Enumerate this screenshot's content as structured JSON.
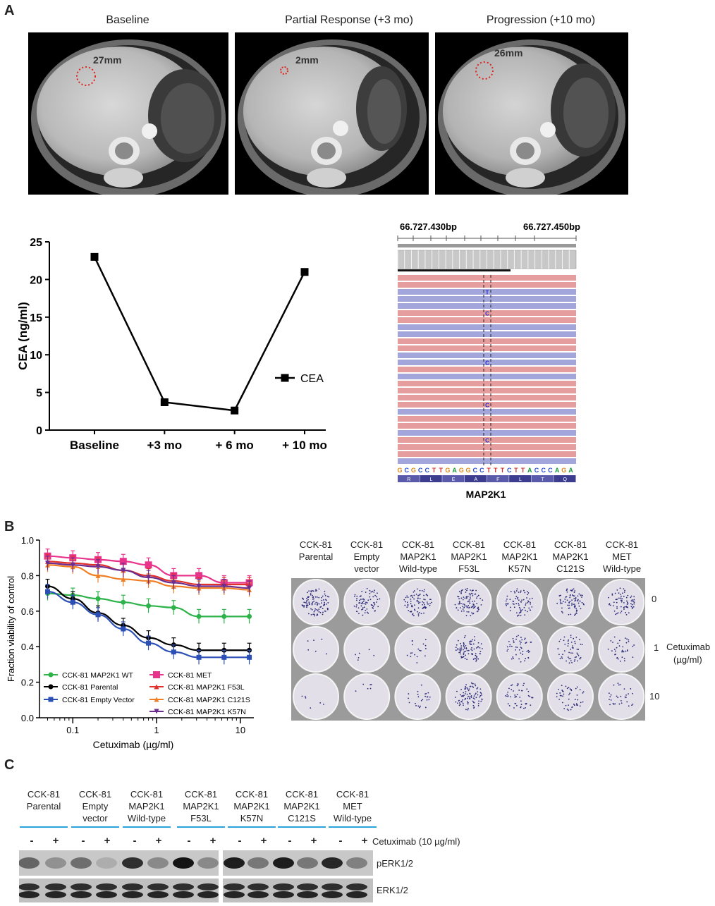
{
  "panel_a": {
    "letter": "A",
    "ct_panels": [
      {
        "title": "Baseline",
        "measure": "27mm"
      },
      {
        "title": "Partial Response (+3 mo)",
        "measure": "2mm"
      },
      {
        "title": "Progression (+10 mo)",
        "measure": "26mm"
      }
    ],
    "igv": {
      "coord_left": "66.727.430bp",
      "coord_right": "66.727.450bp",
      "sequence": "GCGCCTTGAGGCCTTTCTTACCCAGA",
      "amino_acids": [
        "R",
        "L",
        "E",
        "A",
        "F",
        "L",
        "T",
        "Q"
      ],
      "gene": "MAP2K1",
      "variant_base": "C",
      "variant_t": "T"
    }
  },
  "panel_b": {
    "letter": "B",
    "clonogenic": {
      "lines": [
        [
          "CCK-81",
          "Parental"
        ],
        [
          "CCK-81",
          "Empty",
          "vector"
        ],
        [
          "CCK-81",
          "MAP2K1",
          "Wild-type"
        ],
        [
          "CCK-81",
          "MAP2K1",
          "F53L"
        ],
        [
          "CCK-81",
          "MAP2K1",
          "K57N"
        ],
        [
          "CCK-81",
          "MAP2K1",
          "C121S"
        ],
        [
          "CCK-81",
          "MET",
          "Wild-type"
        ]
      ],
      "doses": [
        "0",
        "1",
        "10"
      ],
      "drug_label": "Cetuximab",
      "unit_label": "(µg/ml)"
    }
  },
  "panel_c": {
    "letter": "C",
    "lanes": [
      [
        "CCK-81",
        "Parental"
      ],
      [
        "CCK-81",
        "Empty",
        "vector"
      ],
      [
        "CCK-81",
        "MAP2K1",
        "Wild-type"
      ],
      [
        "CCK-81",
        "MAP2K1",
        "F53L"
      ],
      [
        "CCK-81",
        "MAP2K1",
        "K57N"
      ],
      [
        "CCK-81",
        "MAP2K1",
        "C121S"
      ],
      [
        "CCK-81",
        "MET",
        "Wild-type"
      ]
    ],
    "minus": "-",
    "plus": "+",
    "treatment_label": "Cetuximab (10 µg/ml)",
    "blots": [
      "pERK1/2",
      "ERK1/2"
    ]
  },
  "chart_data": [
    {
      "type": "line",
      "x": [
        "Baseline",
        "+3 mo",
        "+ 6 mo",
        "+ 10 mo"
      ],
      "series": [
        {
          "name": "CEA",
          "values": [
            23,
            3.7,
            2.6,
            21
          ],
          "color": "#000000"
        }
      ],
      "title": "",
      "xlabel": "",
      "ylabel": "CEA (ng/ml)",
      "ylim": [
        0,
        25
      ],
      "yticks": [
        0,
        5,
        10,
        15,
        20,
        25
      ],
      "legend": "right"
    },
    {
      "type": "scatter",
      "xscale": "log",
      "xlim": [
        0.05,
        12.8
      ],
      "xticks": [
        "0.1",
        "1",
        "10"
      ],
      "xlabel": "Cetuximab (µg/ml)",
      "ylabel": "Fraction viability of control",
      "ylim": [
        0,
        1.0
      ],
      "yticks": [
        "0.0",
        "0.2",
        "0.4",
        "0.6",
        "0.8",
        "1.0"
      ],
      "x": [
        0.05,
        0.1,
        0.2,
        0.4,
        0.8,
        1.6,
        3.2,
        6.4,
        12.8
      ],
      "legend": "bottom-left",
      "series": [
        {
          "name": "CCK-81 MAP2K1 WT",
          "color": "#2db34a",
          "marker": "circle",
          "values": [
            0.7,
            0.69,
            0.67,
            0.65,
            0.63,
            0.62,
            0.57,
            0.57,
            0.57
          ]
        },
        {
          "name": "CCK-81 Parental",
          "color": "#000000",
          "marker": "circle",
          "values": [
            0.74,
            0.67,
            0.59,
            0.52,
            0.45,
            0.41,
            0.38,
            0.38,
            0.38
          ]
        },
        {
          "name": "CCK-81 Empty Vector",
          "color": "#2b4fb5",
          "marker": "square",
          "values": [
            0.71,
            0.65,
            0.58,
            0.5,
            0.42,
            0.37,
            0.34,
            0.34,
            0.34
          ]
        },
        {
          "name": "CCK-81 MET",
          "color": "#e8338c",
          "marker": "square",
          "values": [
            0.91,
            0.9,
            0.89,
            0.88,
            0.86,
            0.8,
            0.8,
            0.76,
            0.76
          ]
        },
        {
          "name": "CCK-81 MAP2K1 F53L",
          "color": "#e0302b",
          "marker": "triangle",
          "values": [
            0.88,
            0.87,
            0.86,
            0.83,
            0.8,
            0.77,
            0.75,
            0.75,
            0.75
          ]
        },
        {
          "name": "CCK-81 MAP2K1 C121S",
          "color": "#f07e25",
          "marker": "triangle",
          "values": [
            0.86,
            0.85,
            0.8,
            0.78,
            0.77,
            0.74,
            0.73,
            0.73,
            0.72
          ]
        },
        {
          "name": "CCK-81 MAP2K1 K57N",
          "color": "#6b2d8f",
          "marker": "triangle-down",
          "values": [
            0.87,
            0.86,
            0.85,
            0.83,
            0.79,
            0.76,
            0.74,
            0.74,
            0.73
          ]
        }
      ]
    }
  ]
}
